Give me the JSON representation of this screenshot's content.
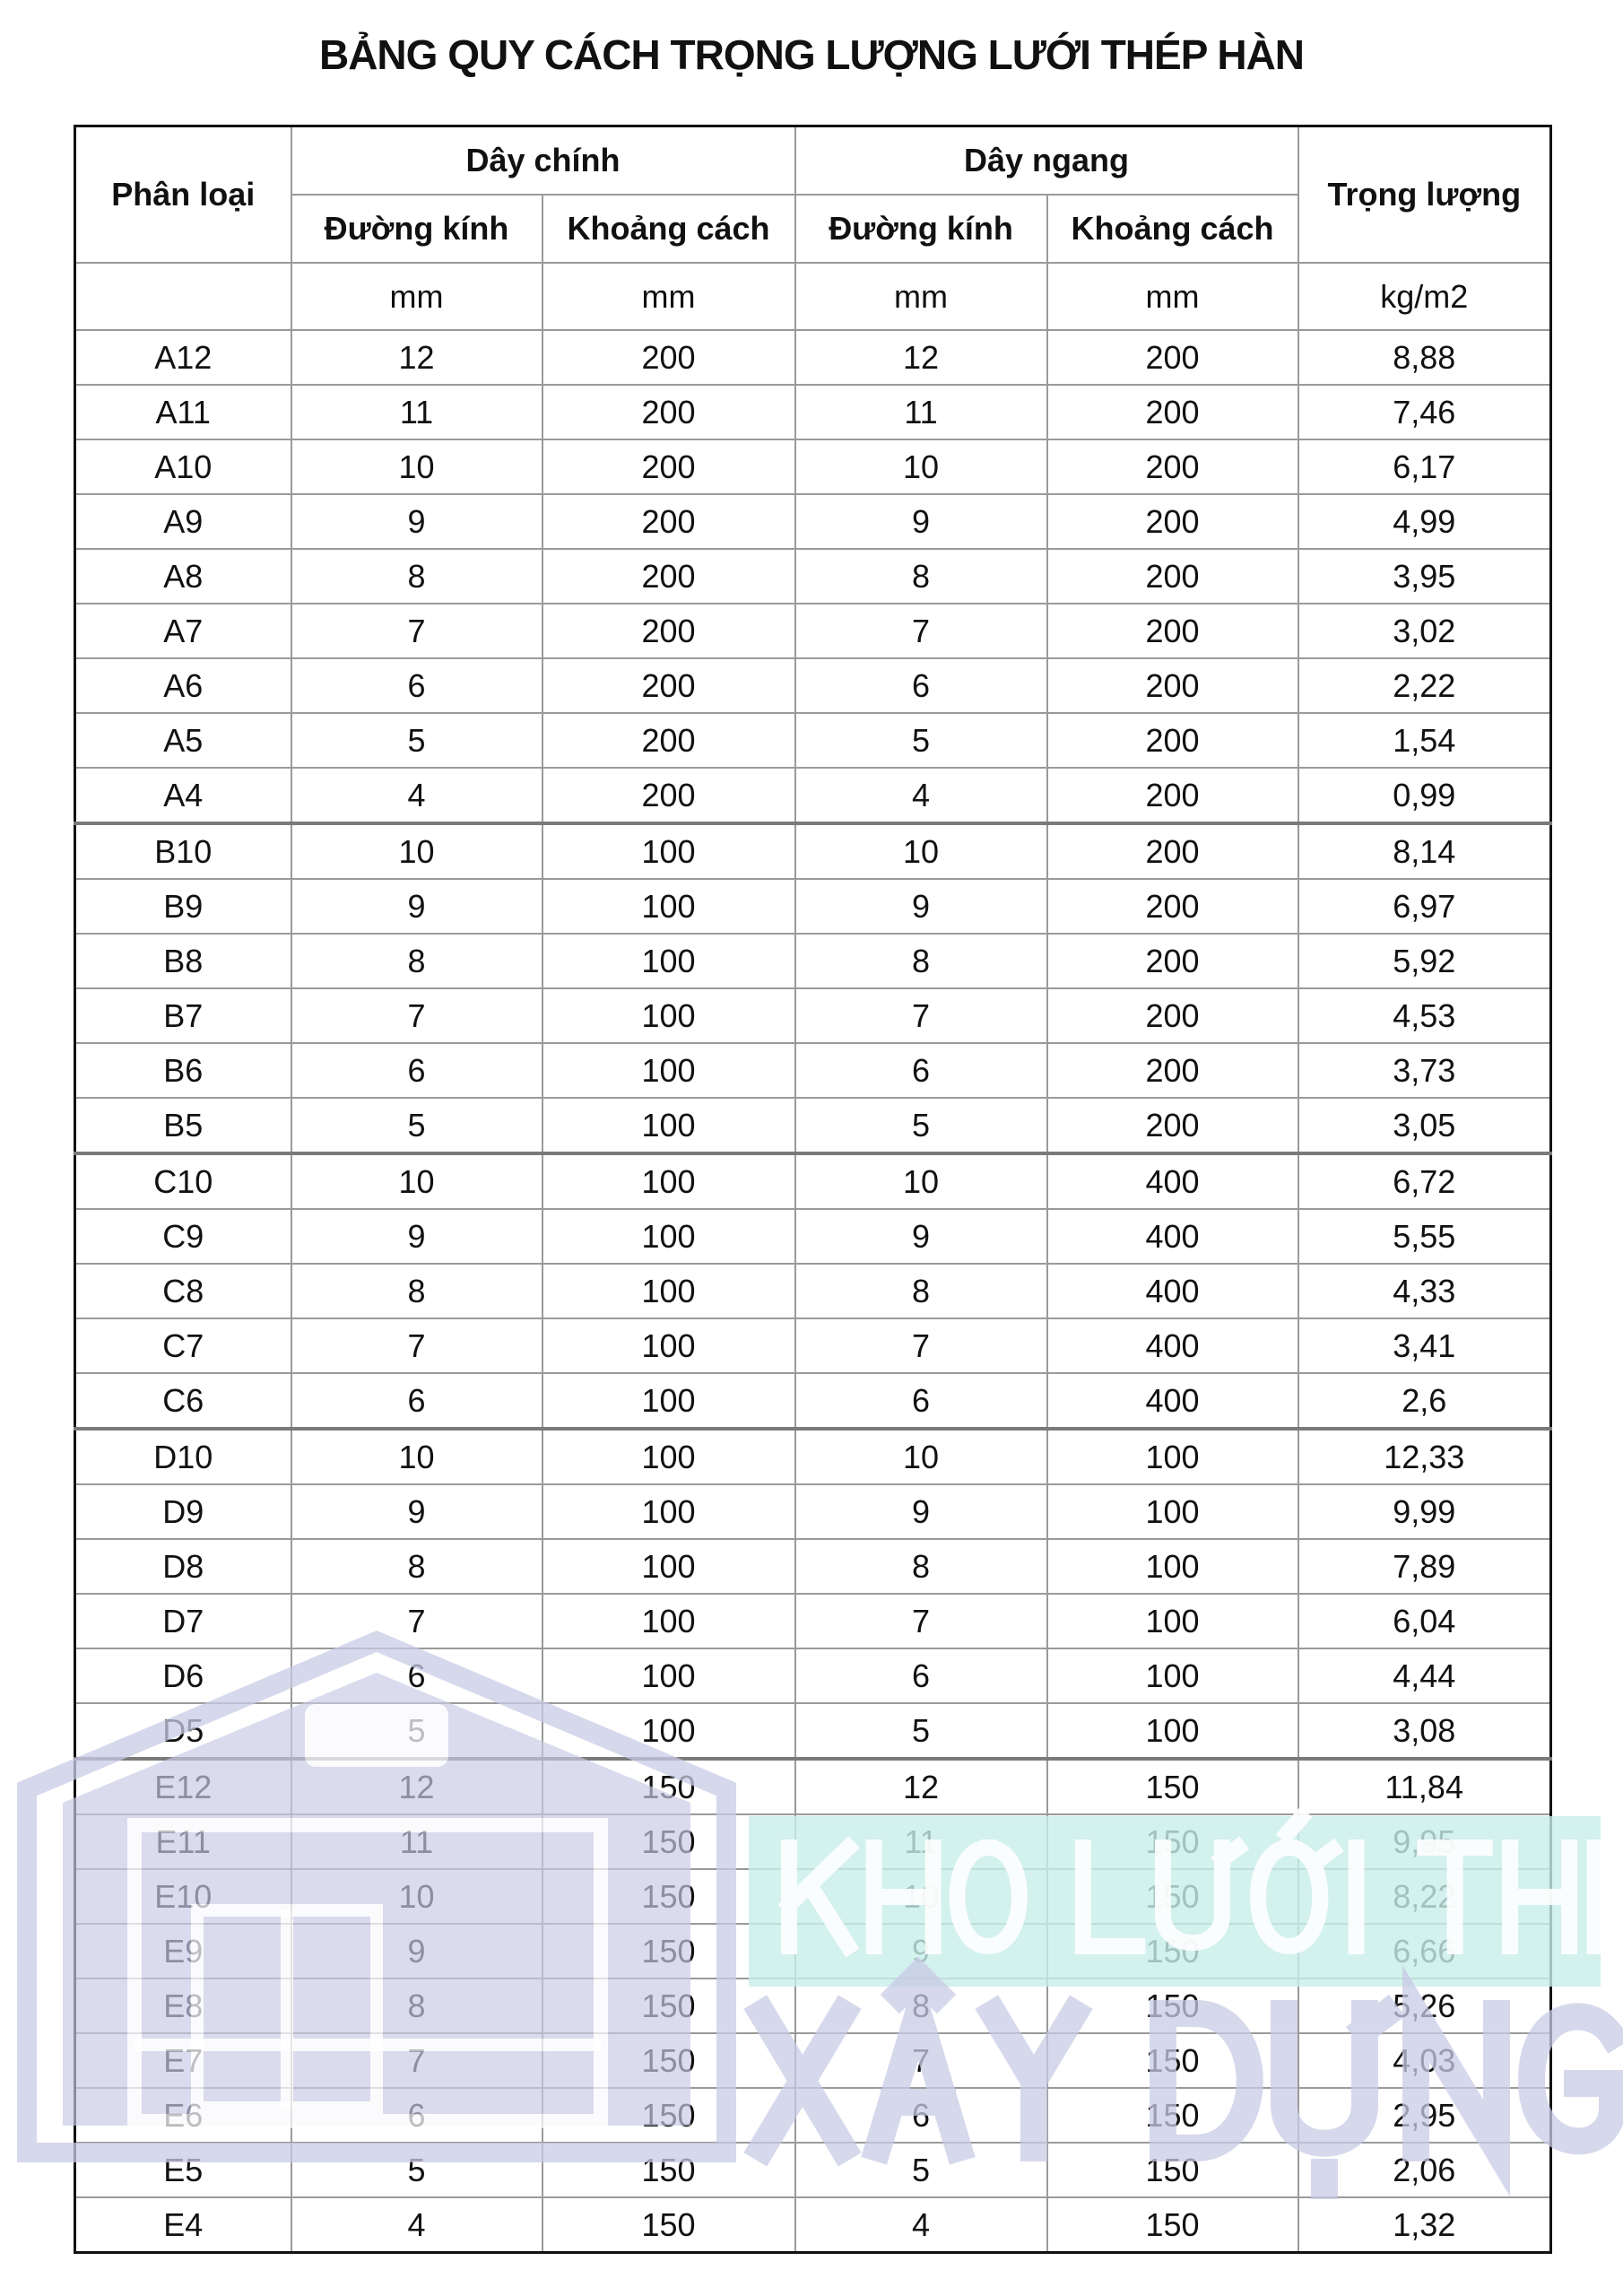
{
  "title": "BẢNG QUY CÁCH TRỌNG LƯỢNG LƯỚI THÉP HÀN",
  "headers": {
    "classification": "Phân loại",
    "main_wire": "Dây chính",
    "cross_wire": "Dây ngang",
    "weight": "Trọng lượng",
    "diameter": "Đường kính",
    "spacing": "Khoảng cách"
  },
  "units": {
    "main_diameter": "mm",
    "main_spacing": "mm",
    "cross_diameter": "mm",
    "cross_spacing": "mm",
    "weight": "kg/m2"
  },
  "rows": [
    [
      "A12",
      "12",
      "200",
      "12",
      "200",
      "8,88"
    ],
    [
      "A11",
      "11",
      "200",
      "11",
      "200",
      "7,46"
    ],
    [
      "A10",
      "10",
      "200",
      "10",
      "200",
      "6,17"
    ],
    [
      "A9",
      "9",
      "200",
      "9",
      "200",
      "4,99"
    ],
    [
      "A8",
      "8",
      "200",
      "8",
      "200",
      "3,95"
    ],
    [
      "A7",
      "7",
      "200",
      "7",
      "200",
      "3,02"
    ],
    [
      "A6",
      "6",
      "200",
      "6",
      "200",
      "2,22"
    ],
    [
      "A5",
      "5",
      "200",
      "5",
      "200",
      "1,54"
    ],
    [
      "A4",
      "4",
      "200",
      "4",
      "200",
      "0,99"
    ],
    [
      "B10",
      "10",
      "100",
      "10",
      "200",
      "8,14"
    ],
    [
      "B9",
      "9",
      "100",
      "9",
      "200",
      "6,97"
    ],
    [
      "B8",
      "8",
      "100",
      "8",
      "200",
      "5,92"
    ],
    [
      "B7",
      "7",
      "100",
      "7",
      "200",
      "4,53"
    ],
    [
      "B6",
      "6",
      "100",
      "6",
      "200",
      "3,73"
    ],
    [
      "B5",
      "5",
      "100",
      "5",
      "200",
      "3,05"
    ],
    [
      "C10",
      "10",
      "100",
      "10",
      "400",
      "6,72"
    ],
    [
      "C9",
      "9",
      "100",
      "9",
      "400",
      "5,55"
    ],
    [
      "C8",
      "8",
      "100",
      "8",
      "400",
      "4,33"
    ],
    [
      "C7",
      "7",
      "100",
      "7",
      "400",
      "3,41"
    ],
    [
      "C6",
      "6",
      "100",
      "6",
      "400",
      "2,6"
    ],
    [
      "D10",
      "10",
      "100",
      "10",
      "100",
      "12,33"
    ],
    [
      "D9",
      "9",
      "100",
      "9",
      "100",
      "9,99"
    ],
    [
      "D8",
      "8",
      "100",
      "8",
      "100",
      "7,89"
    ],
    [
      "D7",
      "7",
      "100",
      "7",
      "100",
      "6,04"
    ],
    [
      "D6",
      "6",
      "100",
      "6",
      "100",
      "4,44"
    ],
    [
      "D5",
      "5",
      "100",
      "5",
      "100",
      "3,08"
    ],
    [
      "E12",
      "12",
      "150",
      "12",
      "150",
      "11,84"
    ],
    [
      "E11",
      "11",
      "150",
      "11",
      "150",
      "9,95"
    ],
    [
      "E10",
      "10",
      "150",
      "10",
      "150",
      "8,22"
    ],
    [
      "E9",
      "9",
      "150",
      "9",
      "150",
      "6,66"
    ],
    [
      "E8",
      "8",
      "150",
      "8",
      "150",
      "5,26"
    ],
    [
      "E7",
      "7",
      "150",
      "7",
      "150",
      "4,03"
    ],
    [
      "E6",
      "6",
      "150",
      "6",
      "150",
      "2,95"
    ],
    [
      "E5",
      "5",
      "150",
      "5",
      "150",
      "2,06"
    ],
    [
      "E4",
      "4",
      "150",
      "4",
      "150",
      "1,32"
    ]
  ],
  "watermark": {
    "line1": "KHO LƯỚI THÉP",
    "line2": "XÂY DỰNG",
    "house_color": "#c9cbe6",
    "band_color": "#c8ede9"
  }
}
